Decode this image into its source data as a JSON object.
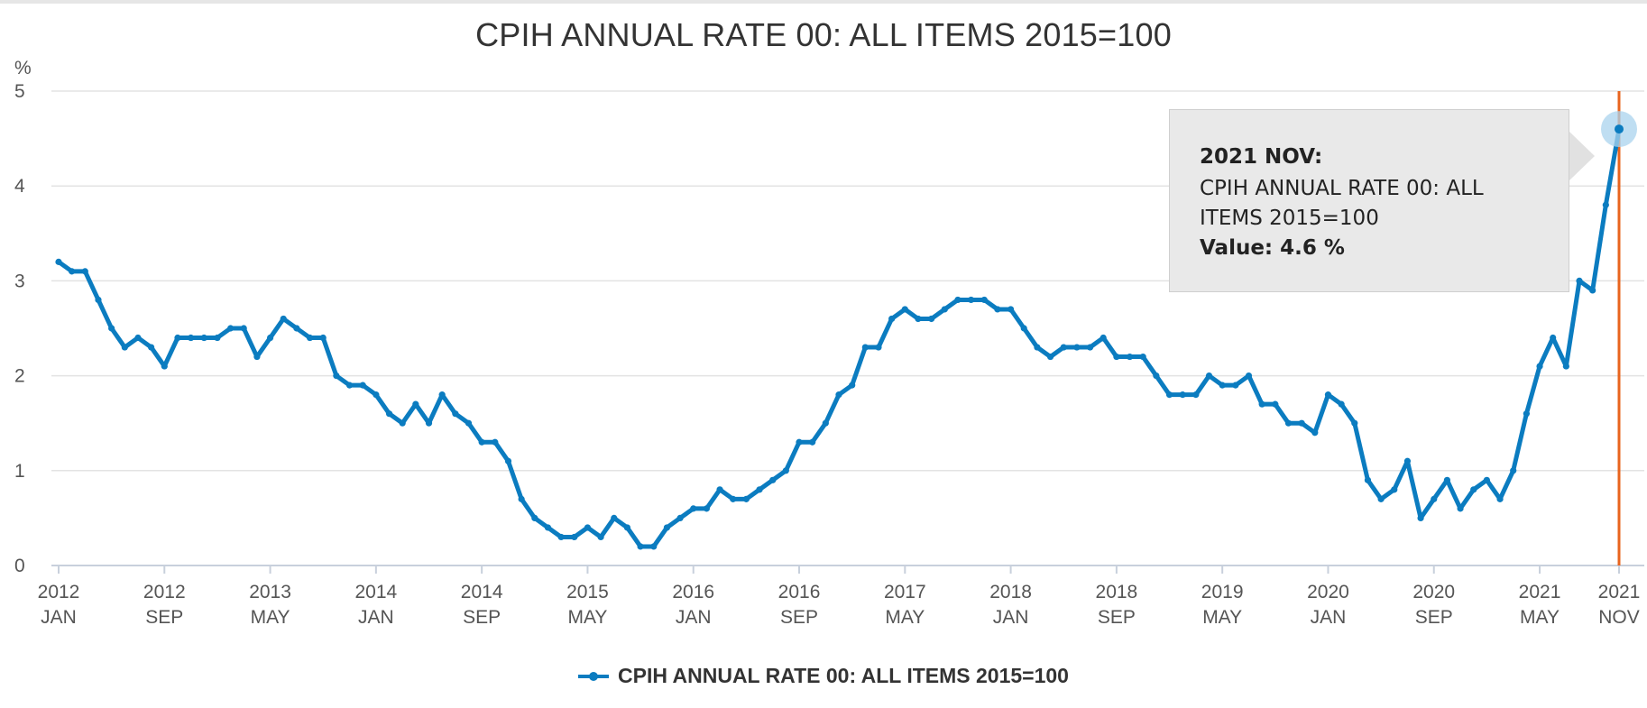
{
  "chart_data": {
    "type": "line",
    "title": "CPIH ANNUAL RATE 00: ALL ITEMS 2015=100",
    "ylabel": "%",
    "ylim": [
      0,
      5
    ],
    "y_ticks": [
      "0",
      "1",
      "2",
      "3",
      "4",
      "5"
    ],
    "x_tick_labels": [
      {
        "year": "2012",
        "month": "JAN"
      },
      {
        "year": "2012",
        "month": "SEP"
      },
      {
        "year": "2013",
        "month": "MAY"
      },
      {
        "year": "2014",
        "month": "JAN"
      },
      {
        "year": "2014",
        "month": "SEP"
      },
      {
        "year": "2015",
        "month": "MAY"
      },
      {
        "year": "2016",
        "month": "JAN"
      },
      {
        "year": "2016",
        "month": "SEP"
      },
      {
        "year": "2017",
        "month": "MAY"
      },
      {
        "year": "2018",
        "month": "JAN"
      },
      {
        "year": "2018",
        "month": "SEP"
      },
      {
        "year": "2019",
        "month": "MAY"
      },
      {
        "year": "2020",
        "month": "JAN"
      },
      {
        "year": "2020",
        "month": "SEP"
      },
      {
        "year": "2021",
        "month": "MAY"
      },
      {
        "year": "2021",
        "month": "NOV"
      }
    ],
    "x_start": "2012 JAN",
    "x_end": "2021 NOV",
    "series": [
      {
        "name": "CPIH ANNUAL RATE 00: ALL ITEMS 2015=100",
        "color": "#0b7cc0",
        "values": [
          3.2,
          3.1,
          3.1,
          2.8,
          2.5,
          2.3,
          2.4,
          2.3,
          2.1,
          2.4,
          2.4,
          2.4,
          2.4,
          2.5,
          2.5,
          2.2,
          2.4,
          2.6,
          2.5,
          2.4,
          2.4,
          2.0,
          1.9,
          1.9,
          1.8,
          1.6,
          1.5,
          1.7,
          1.5,
          1.8,
          1.6,
          1.5,
          1.3,
          1.3,
          1.1,
          0.7,
          0.5,
          0.4,
          0.3,
          0.3,
          0.4,
          0.3,
          0.5,
          0.4,
          0.2,
          0.2,
          0.4,
          0.5,
          0.6,
          0.6,
          0.8,
          0.7,
          0.7,
          0.8,
          0.9,
          1.0,
          1.3,
          1.3,
          1.5,
          1.8,
          1.9,
          2.3,
          2.3,
          2.6,
          2.7,
          2.6,
          2.6,
          2.7,
          2.8,
          2.8,
          2.8,
          2.7,
          2.7,
          2.5,
          2.3,
          2.2,
          2.3,
          2.3,
          2.3,
          2.4,
          2.2,
          2.2,
          2.2,
          2.0,
          1.8,
          1.8,
          1.8,
          2.0,
          1.9,
          1.9,
          2.0,
          1.7,
          1.7,
          1.5,
          1.5,
          1.4,
          1.8,
          1.7,
          1.5,
          0.9,
          0.7,
          0.8,
          1.1,
          0.5,
          0.7,
          0.9,
          0.6,
          0.8,
          0.9,
          0.7,
          1.0,
          1.6,
          2.1,
          2.4,
          2.1,
          3.0,
          2.9,
          3.8,
          4.6
        ]
      }
    ],
    "highlight": {
      "index": 118,
      "label": "2021 NOV"
    },
    "marker_line_color": "#e8641e"
  },
  "tooltip": {
    "date": "2021 NOV:",
    "series_line1": "CPIH ANNUAL RATE 00: ALL",
    "series_line2": "ITEMS 2015=100",
    "value_text": "Value: 4.6 %"
  },
  "legend": {
    "label": "CPIH ANNUAL RATE 00: ALL ITEMS 2015=100"
  }
}
